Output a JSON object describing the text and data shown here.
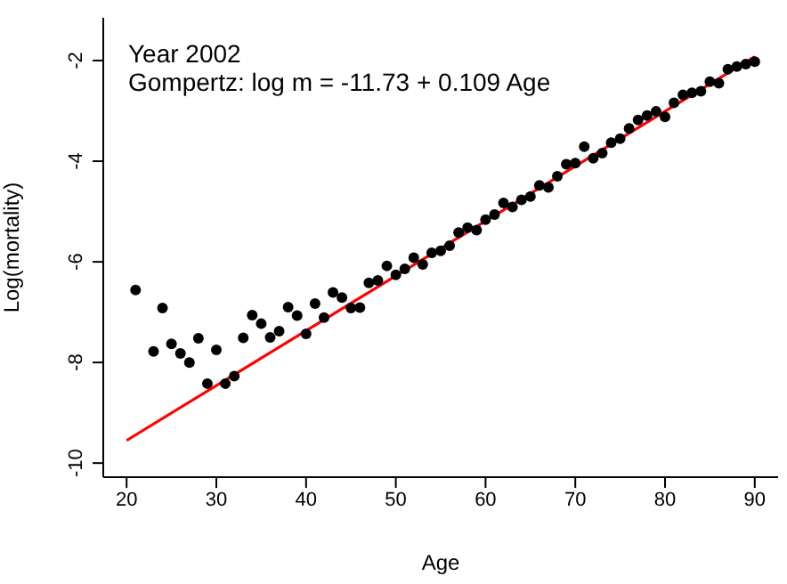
{
  "chart_data": {
    "type": "scatter",
    "xlabel": "Age",
    "ylabel": "Log(mortality)",
    "annotations": [
      "Year 2002",
      "Gompertz: log m = -11.73 + 0.109 Age"
    ],
    "xlim": [
      17.4,
      92.6
    ],
    "ylim": [
      -10.28,
      -1.15
    ],
    "xticks": [
      20,
      30,
      40,
      50,
      60,
      70,
      80,
      90
    ],
    "yticks": [
      -10,
      -8,
      -6,
      -4,
      -2
    ],
    "series": [
      {
        "marker": "circle",
        "color": "#000000",
        "x": [
          21,
          23,
          24,
          25,
          26,
          27,
          28,
          29,
          30,
          31,
          32,
          33,
          34,
          35,
          36,
          37,
          38,
          39,
          40,
          41,
          42,
          43,
          44,
          45,
          46,
          47,
          48,
          49,
          50,
          51,
          52,
          53,
          54,
          55,
          56,
          57,
          58,
          59,
          60,
          61,
          62,
          63,
          64,
          65,
          66,
          67,
          68,
          69,
          70,
          71,
          72,
          73,
          74,
          75,
          76,
          77,
          78,
          79,
          80,
          81,
          82,
          83,
          84,
          85,
          86,
          87,
          88,
          89,
          90
        ],
        "values": [
          -6.56,
          -7.78,
          -6.92,
          -7.63,
          -7.82,
          -8.0,
          -7.52,
          -8.42,
          -7.75,
          -8.42,
          -8.27,
          -7.51,
          -7.06,
          -7.23,
          -7.5,
          -7.38,
          -6.9,
          -7.07,
          -7.43,
          -6.83,
          -7.11,
          -6.61,
          -6.71,
          -6.92,
          -6.91,
          -6.42,
          -6.37,
          -6.08,
          -6.26,
          -6.14,
          -5.92,
          -6.05,
          -5.82,
          -5.78,
          -5.68,
          -5.42,
          -5.32,
          -5.37,
          -5.16,
          -5.06,
          -4.83,
          -4.91,
          -4.77,
          -4.7,
          -4.48,
          -4.52,
          -4.3,
          -4.06,
          -4.04,
          -3.71,
          -3.94,
          -3.84,
          -3.63,
          -3.55,
          -3.35,
          -3.18,
          -3.09,
          -3.01,
          -3.12,
          -2.84,
          -2.68,
          -2.64,
          -2.61,
          -2.42,
          -2.45,
          -2.17,
          -2.12,
          -2.07,
          -2.02
        ]
      },
      {
        "type": "line",
        "marker": "none",
        "color": "#ff0000",
        "x": [
          20,
          90
        ],
        "values": [
          -9.55,
          -1.92
        ]
      }
    ]
  }
}
